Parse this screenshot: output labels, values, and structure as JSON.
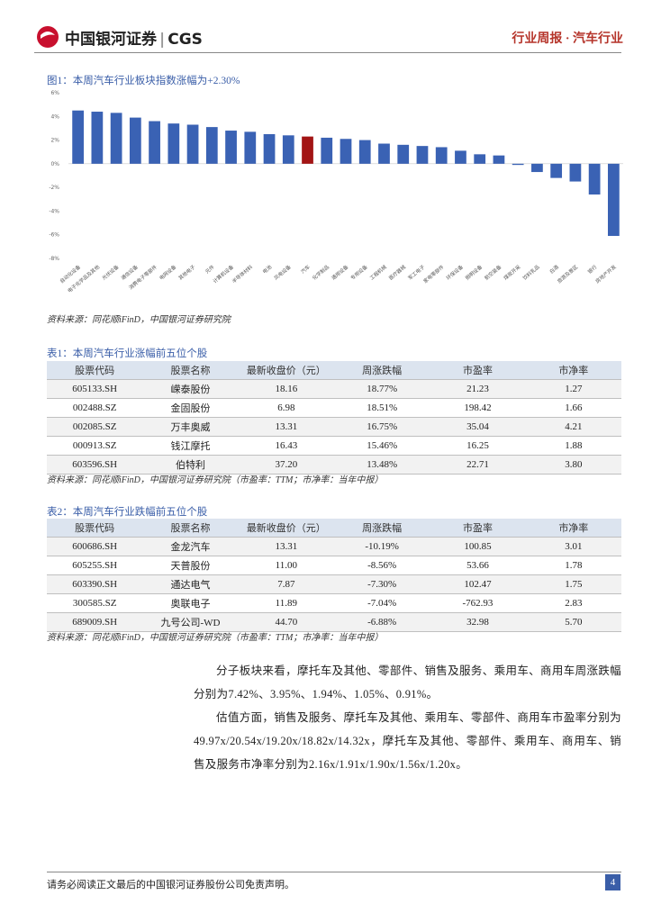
{
  "header": {
    "brand": "中国银河证券",
    "brand_en": "CGS",
    "report": "行业周报 · 汽车行业"
  },
  "figure": {
    "caption": "图1：本周汽车行业板块指数涨幅为+2.30%",
    "source": "资料来源：同花顺iFinD，中国银河证券研究院",
    "chart_data": {
      "type": "bar",
      "categories": [
        "自动化设备",
        "电子化学品及其他",
        "光伏设备",
        "通信设备",
        "消费电子零部件",
        "电网设备",
        "其他电子",
        "元件",
        "计算机设备",
        "半导体材料",
        "电池",
        "风电设备",
        "汽车",
        "化学制品",
        "通用设备",
        "专用设备",
        "工程机械",
        "医疗器械",
        "军工电子",
        "家电零部件",
        "环保设备",
        "照明设备",
        "航空装备",
        "煤炭开采",
        "饮料乳品",
        "白酒",
        "旅游及景区",
        "银行",
        "房地产开发"
      ],
      "values": [
        4.5,
        4.4,
        4.3,
        3.9,
        3.6,
        3.4,
        3.3,
        3.1,
        2.8,
        2.7,
        2.5,
        2.4,
        2.3,
        2.2,
        2.1,
        2.0,
        1.7,
        1.6,
        1.5,
        1.4,
        1.1,
        0.8,
        0.7,
        -0.1,
        -0.7,
        -1.2,
        -1.5,
        -2.6,
        -6.1
      ],
      "color": "#3a62b4",
      "highlight": {
        "index": 12,
        "color": "#a31515"
      },
      "ylim": [
        -8,
        6
      ],
      "yticks": [
        {
          "value": 6,
          "label": "6%"
        },
        {
          "value": 4,
          "label": "4%"
        },
        {
          "value": 2,
          "label": "2%"
        },
        {
          "value": 0,
          "label": "0%"
        },
        {
          "value": -2,
          "label": "-2%"
        },
        {
          "value": -4,
          "label": "-4%"
        },
        {
          "value": -6,
          "label": "-6%"
        },
        {
          "value": -8,
          "label": "-8%"
        }
      ],
      "grid": false
    }
  },
  "tables": [
    {
      "caption": "表1：本周汽车行业涨幅前五位个股",
      "header": [
        "股票代码",
        "股票名称",
        "最新收盘价（元）",
        "周涨跌幅",
        "市盈率",
        "市净率"
      ],
      "rows": [
        [
          "605133.SH",
          "嵘泰股份",
          "18.16",
          "18.77%",
          "21.23",
          "1.27"
        ],
        [
          "002488.SZ",
          "金固股份",
          "6.98",
          "18.51%",
          "198.42",
          "1.66"
        ],
        [
          "002085.SZ",
          "万丰奥威",
          "13.31",
          "16.75%",
          "35.04",
          "4.21"
        ],
        [
          "000913.SZ",
          "钱江摩托",
          "16.43",
          "15.46%",
          "16.25",
          "1.88"
        ],
        [
          "603596.SH",
          "伯特利",
          "37.20",
          "13.48%",
          "22.71",
          "3.80"
        ]
      ],
      "source": "资料来源：同花顺iFinD，中国银河证券研究院（市盈率：TTM；市净率：当年中报）"
    },
    {
      "caption": "表2：本周汽车行业跌幅前五位个股",
      "header": [
        "股票代码",
        "股票名称",
        "最新收盘价（元）",
        "周涨跌幅",
        "市盈率",
        "市净率"
      ],
      "rows": [
        [
          "600686.SH",
          "金龙汽车",
          "13.31",
          "-10.19%",
          "100.85",
          "3.01"
        ],
        [
          "605255.SH",
          "天普股份",
          "11.00",
          "-8.56%",
          "53.66",
          "1.78"
        ],
        [
          "603390.SH",
          "通达电气",
          "7.87",
          "-7.30%",
          "102.47",
          "1.75"
        ],
        [
          "300585.SZ",
          "奥联电子",
          "11.89",
          "-7.04%",
          "-762.93",
          "2.83"
        ],
        [
          "689009.SH",
          "九号公司-WD",
          "44.70",
          "-6.88%",
          "32.98",
          "5.70"
        ]
      ],
      "source": "资料来源：同花顺iFinD，中国银河证券研究院（市盈率：TTM；市净率：当年中报）"
    }
  ],
  "body": [
    "分子板块来看，摩托车及其他、零部件、销售及服务、乘用车、商用车周涨跌幅分别为7.42%、3.95%、1.94%、1.05%、0.91%。",
    "估值方面，销售及服务、摩托车及其他、乘用车、零部件、商用车市盈率分别为49.97x/20.54x/19.20x/18.82x/14.32x，摩托车及其他、零部件、乘用车、商用车、销售及服务市净率分别为2.16x/1.91x/1.90x/1.56x/1.20x。"
  ],
  "footer": {
    "disclaimer": "请务必阅读正文最后的中国银河证券股份公司免责声明。",
    "page": "4"
  }
}
